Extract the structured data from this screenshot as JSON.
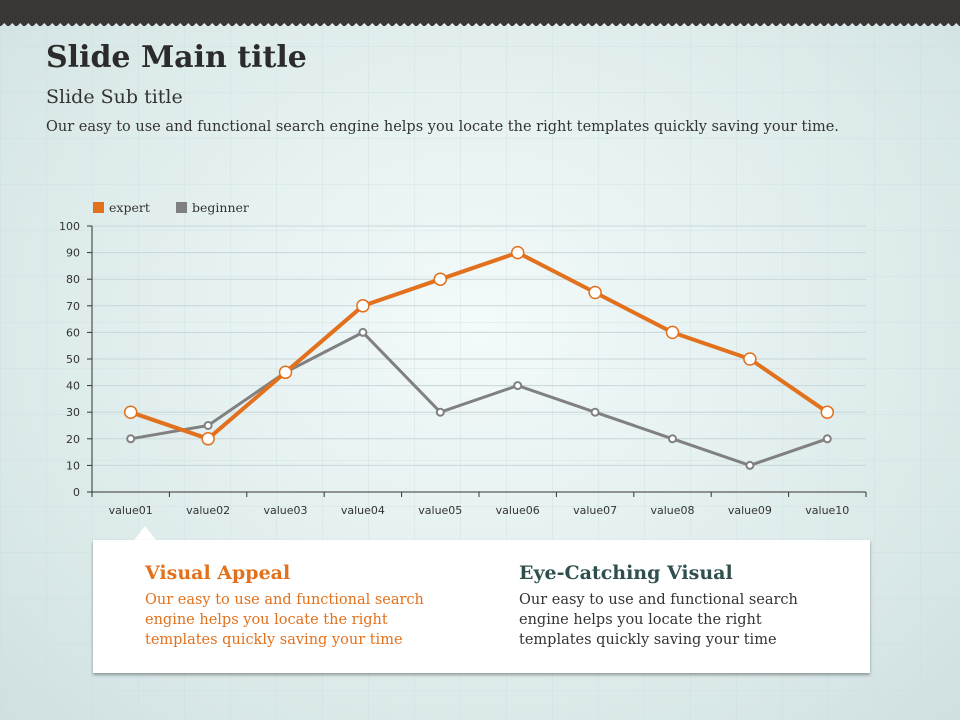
{
  "header": {
    "title": "Slide Main title",
    "subtitle": "Slide Sub title",
    "description": "Our easy to use and functional search engine helps you locate the right templates quickly saving your time."
  },
  "chart_data": {
    "type": "line",
    "categories": [
      "value01",
      "value02",
      "value03",
      "value04",
      "value05",
      "value06",
      "value07",
      "value08",
      "value09",
      "value10"
    ],
    "series": [
      {
        "name": "expert",
        "color": "#e2711d",
        "values": [
          30,
          20,
          45,
          70,
          80,
          90,
          75,
          60,
          50,
          30
        ]
      },
      {
        "name": "beginner",
        "color": "#808080",
        "values": [
          20,
          25,
          45,
          60,
          30,
          40,
          30,
          20,
          10,
          20
        ]
      }
    ],
    "ylim": [
      0,
      100
    ],
    "yticks": [
      0,
      10,
      20,
      30,
      40,
      50,
      60,
      70,
      80,
      90,
      100
    ],
    "legend": "top-left",
    "grid": true
  },
  "cards": [
    {
      "title": "Visual Appeal",
      "text": "Our easy to use and functional search engine helps you locate the right templates quickly saving your time",
      "color": "#e2711d"
    },
    {
      "title": "Eye-Catching Visual",
      "text": "Our easy to use and functional search engine helps you locate the right templates quickly saving your time",
      "color": "#2f4f4f"
    }
  ]
}
